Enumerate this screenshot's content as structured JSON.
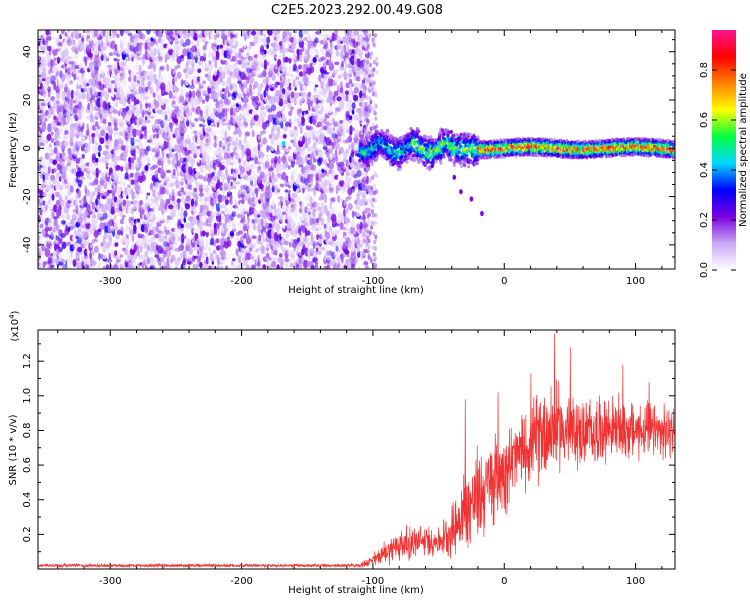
{
  "figure": {
    "title": "C2E5.2023.292.00.49.G08"
  },
  "chart_data": [
    {
      "type": "heatmap",
      "title": "C2E5.2023.292.00.49.G08",
      "xlabel": "Height of straight line (km)",
      "ylabel": "Frequency (Hz)",
      "xlim": [
        -355,
        130
      ],
      "ylim": [
        -50,
        49
      ],
      "xticks": [
        -300,
        -200,
        -100,
        0,
        100
      ],
      "yticks": [
        -40,
        -20,
        0,
        20,
        40
      ],
      "colorbar": {
        "label": "Normalized spectral amplitude",
        "range": [
          0.0,
          0.96
        ],
        "ticks": [
          0.0,
          0.2,
          0.4,
          0.6,
          0.8
        ],
        "tick_labels": [
          "0.0",
          "0.2",
          "0.4",
          "0.6",
          "0.8"
        ],
        "colormap": [
          "#ffffff",
          "#c9a8f5",
          "#7a00e0",
          "#0000ff",
          "#00d8ff",
          "#00ff40",
          "#ffff00",
          "#ff8000",
          "#ff0000",
          "#ff1493"
        ]
      },
      "regions": [
        {
          "name": "noise",
          "x_range": [
            -355,
            -103
          ],
          "freq_range": [
            -50,
            49
          ],
          "amplitude_range": [
            0.0,
            0.15
          ]
        },
        {
          "name": "signal-trace",
          "x_range": [
            -110,
            130
          ],
          "center_freq_hz": 0,
          "width_hz": 7,
          "amplitude_range": [
            0.2,
            0.9
          ]
        },
        {
          "name": "outliers",
          "points": [
            {
              "x": -38,
              "freq": -12
            },
            {
              "x": -33,
              "freq": -18
            },
            {
              "x": -25,
              "freq": -21
            },
            {
              "x": -17,
              "freq": -27
            },
            {
              "x": -168,
              "freq": 2
            }
          ]
        }
      ]
    },
    {
      "type": "line",
      "xlabel": "Height of straight line (km)",
      "ylabel": "SNR (10 * v/v)",
      "scale_note": "(x10",
      "scale_exp": "4",
      "scale_close": ")",
      "xlim": [
        -355,
        130
      ],
      "ylim": [
        0,
        1.38
      ],
      "xticks": [
        -300,
        -200,
        -100,
        0,
        100
      ],
      "yticks": [
        0.2,
        0.4,
        0.6,
        0.8,
        1.0,
        1.2
      ],
      "ytick_labels": [
        "0.2",
        "0.4",
        "0.6",
        "0.8",
        "1.0",
        "1.2"
      ],
      "color": "#f03232",
      "envelope": {
        "x": [
          -355,
          -110,
          -100,
          -90,
          -80,
          -70,
          -60,
          -50,
          -40,
          -30,
          -20,
          -10,
          0,
          10,
          20,
          30,
          40,
          50,
          60,
          70,
          80,
          90,
          100,
          110,
          120,
          130
        ],
        "mean": [
          0.02,
          0.02,
          0.05,
          0.1,
          0.14,
          0.15,
          0.16,
          0.16,
          0.22,
          0.34,
          0.42,
          0.5,
          0.58,
          0.65,
          0.72,
          0.8,
          0.82,
          0.8,
          0.78,
          0.8,
          0.82,
          0.8,
          0.8,
          0.8,
          0.78,
          0.8
        ],
        "spread": [
          0.01,
          0.01,
          0.04,
          0.07,
          0.1,
          0.1,
          0.09,
          0.08,
          0.15,
          0.25,
          0.28,
          0.25,
          0.25,
          0.22,
          0.22,
          0.3,
          0.25,
          0.22,
          0.2,
          0.2,
          0.18,
          0.18,
          0.17,
          0.16,
          0.16,
          0.15
        ]
      },
      "peaks": [
        {
          "x": -30,
          "y": 0.98
        },
        {
          "x": -5,
          "y": 1.02
        },
        {
          "x": 20,
          "y": 1.13
        },
        {
          "x": 38,
          "y": 1.36
        },
        {
          "x": 50,
          "y": 1.28
        },
        {
          "x": 90,
          "y": 1.18
        },
        {
          "x": 110,
          "y": 1.08
        }
      ]
    }
  ]
}
